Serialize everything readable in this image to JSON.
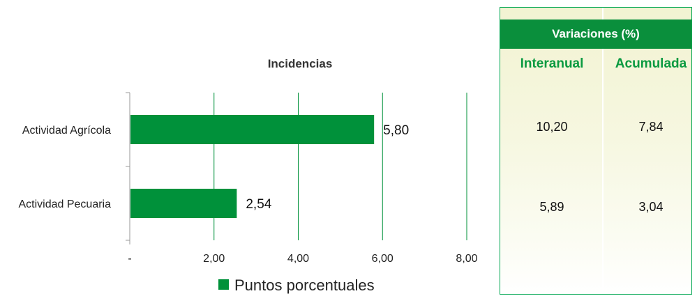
{
  "chart_data": {
    "type": "bar",
    "orientation": "horizontal",
    "title": "Incidencias",
    "categories": [
      "Actividad Agrícola",
      "Actividad Pecuaria"
    ],
    "series": [
      {
        "name": "Puntos porcentuales",
        "values": [
          5.8,
          2.54
        ],
        "color": "#00913a"
      }
    ],
    "data_labels": [
      "5,80",
      "2,54"
    ],
    "xlim": [
      0,
      8
    ],
    "x_ticks": [
      0,
      2,
      4,
      6,
      8
    ],
    "x_tick_labels": [
      "-",
      "2,00",
      "4,00",
      "6,00",
      "8,00"
    ],
    "grid": "vertical",
    "legend_position": "bottom"
  },
  "variations": {
    "header": "Variaciones (%)",
    "columns": [
      "Interanual",
      "Acumulada"
    ],
    "rows": [
      {
        "category": "Actividad Agrícola",
        "values": [
          "10,20",
          "7,84"
        ]
      },
      {
        "category": "Actividad Pecuaria",
        "values": [
          "5,89",
          "3,04"
        ]
      }
    ],
    "header_color": "#0a8f3c",
    "accent_color": "#0a9a40"
  }
}
